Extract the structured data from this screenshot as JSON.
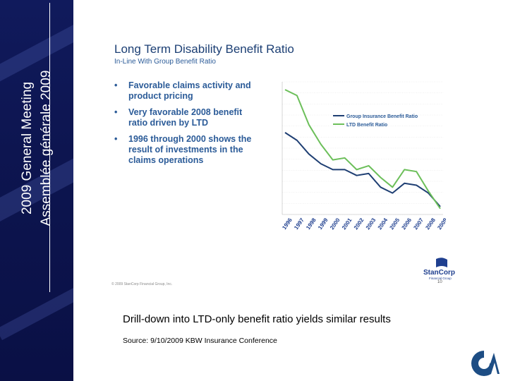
{
  "sidebar": {
    "line1": "2009 General Meeting",
    "line2": "Assemblée générale 2009"
  },
  "slide": {
    "title": "Long Term Disability Benefit Ratio",
    "subtitle": "In-Line With Group Benefit Ratio",
    "bullets": [
      {
        "line1": "Favorable claims activity and",
        "line2": "product pricing"
      },
      {
        "line1": "Very favorable 2008 benefit",
        "line2": "ratio driven by LTD"
      },
      {
        "line1": "1996 through 2000 shows the",
        "line2": "result of investments in the",
        "line3": "claims operations"
      }
    ],
    "copyright": "© 2009 StanCorp Financial Group, Inc.",
    "page_number": "10",
    "brand": {
      "name": "StanCorp",
      "tagline": "Financial Group"
    }
  },
  "caption": "Drill-down into LTD-only benefit ratio yields similar results",
  "source": "Source:  9/10/2009 KBW Insurance Conference",
  "colors": {
    "sidebar": "#0d1550",
    "group_line": "#1f3f73",
    "ltd_line": "#6cbf5a",
    "title": "#1c3f74",
    "bullet": "#2b5b98"
  },
  "chart_data": {
    "type": "line",
    "categories": [
      "1996",
      "1997",
      "1998",
      "1999",
      "2000",
      "2001",
      "2002",
      "2003",
      "2004",
      "2005",
      "2006",
      "2007",
      "2008",
      "2009"
    ],
    "series": [
      {
        "name": "Group Insurance Benefit Ratio",
        "values": [
          85.0,
          83.0,
          79.5,
          77.0,
          75.5,
          75.5,
          74.0,
          74.5,
          71.0,
          69.5,
          72.0,
          71.5,
          69.5,
          66.0
        ]
      },
      {
        "name": "LTD Benefit Ratio",
        "values": [
          96.0,
          94.5,
          87.0,
          82.0,
          78.0,
          78.5,
          75.5,
          76.5,
          73.5,
          71.0,
          75.5,
          75.0,
          70.0,
          65.5
        ]
      }
    ],
    "ylim": [
      64,
      98
    ],
    "legend": "top-right",
    "grid": true
  }
}
